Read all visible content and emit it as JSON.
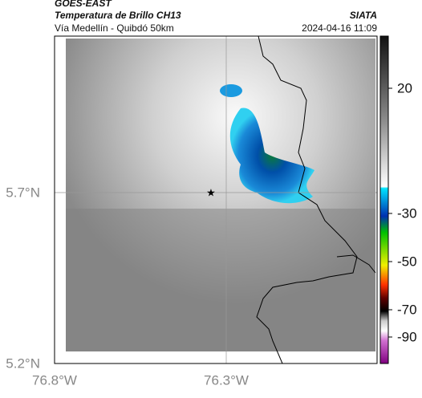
{
  "header": {
    "source": "GOES-EAST",
    "title": "Temperatura de Brillo CH13",
    "subtitle": "Vía Medellín - Quibdó 50km",
    "brand": "SIATA",
    "timestamp": "2024-04-16 11:09"
  },
  "map": {
    "lat_labels": [
      "5.7°N",
      "5.2°N"
    ],
    "lon_labels": [
      "76.8°W",
      "76.3°W"
    ]
  },
  "colorbar": {
    "labels": [
      "20",
      "-30",
      "-50",
      "-70",
      "-90"
    ]
  }
}
